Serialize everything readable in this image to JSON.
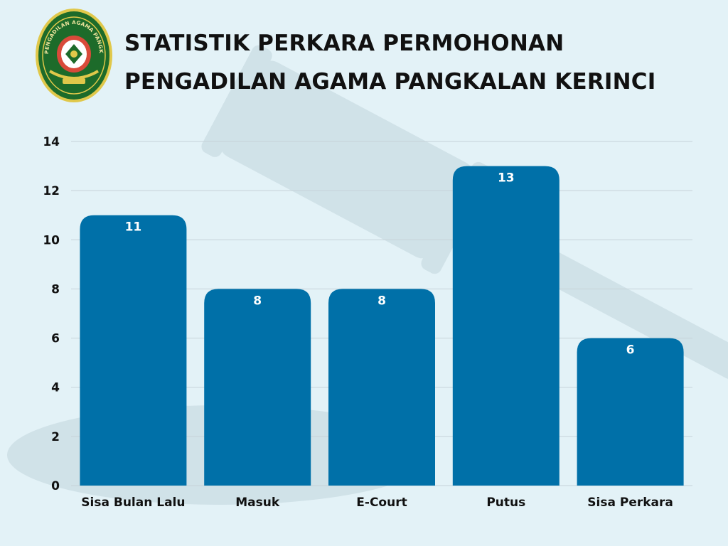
{
  "header": {
    "title_line1": "STATISTIK PERKARA PERMOHONAN",
    "title_line2": "PENGADILAN AGAMA PANGKALAN KERINCI",
    "logo_text": "PENGADILAN AGAMA PANGKALAN KERINCI"
  },
  "colors": {
    "background": "#e3f2f7",
    "bar": "#0070a8",
    "gridline": "#c6d3d9",
    "text": "#111111",
    "data_label": "#ffffff",
    "logo_green": "#1d6b2a",
    "logo_gold": "#e0c84a"
  },
  "chart_data": {
    "type": "bar",
    "title": "STATISTIK PERKARA PERMOHONAN PENGADILAN AGAMA PANGKALAN KERINCI",
    "categories": [
      "Sisa Bulan Lalu",
      "Masuk",
      "E-Court",
      "Putus",
      "Sisa Perkara"
    ],
    "values": [
      11,
      8,
      8,
      13,
      6
    ],
    "xlabel": "",
    "ylabel": "",
    "ylim": [
      0,
      14
    ],
    "yticks": [
      0,
      2,
      4,
      6,
      8,
      10,
      12,
      14
    ],
    "grid": true,
    "legend": "none",
    "data_labels": true
  }
}
